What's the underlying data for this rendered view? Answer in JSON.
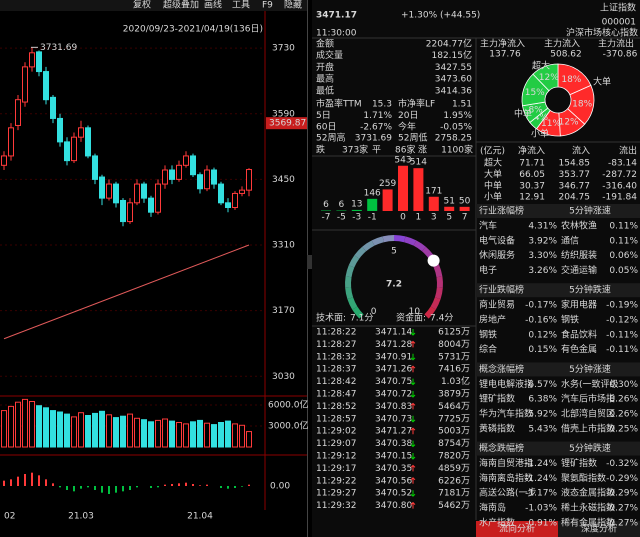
{
  "menu": [
    "复权",
    "超级叠加",
    "画线",
    "工具",
    "F9",
    "隐藏"
  ],
  "chart": {
    "type": "candlestick",
    "date_range": "2020/09/23-2021/04/19(136日)",
    "max_label": "3731.69",
    "crosshair": {
      "value": 3569.87,
      "label": "3569.87"
    },
    "ylim": [
      2990,
      3790
    ],
    "yticks": [
      3030,
      3170,
      3310,
      3450,
      3590,
      3730
    ],
    "dates": [
      "02",
      null,
      null,
      null,
      null,
      null,
      null,
      null,
      null,
      null,
      null,
      "21.03",
      null,
      null,
      null,
      null,
      null,
      null,
      null,
      null,
      null,
      null,
      null,
      null,
      null,
      null,
      null,
      null,
      "21.04",
      null,
      null,
      null,
      null,
      null,
      null,
      null
    ],
    "open": [
      3480,
      3500,
      3565,
      3615,
      3690,
      3722,
      3680,
      3625,
      3580,
      3530,
      3490,
      3540,
      3560,
      3500,
      3455,
      3410,
      3440,
      3405,
      3360,
      3400,
      3440,
      3410,
      3380,
      3440,
      3470,
      3450,
      3480,
      3500,
      3460,
      3430,
      3470,
      3440,
      3400,
      3390,
      3420,
      3427
    ],
    "high": [
      3510,
      3570,
      3630,
      3700,
      3731.69,
      3725,
      3690,
      3630,
      3590,
      3540,
      3550,
      3575,
      3565,
      3505,
      3460,
      3450,
      3445,
      3410,
      3410,
      3450,
      3445,
      3415,
      3450,
      3480,
      3480,
      3490,
      3510,
      3505,
      3465,
      3480,
      3475,
      3445,
      3410,
      3425,
      3435,
      3474
    ],
    "low": [
      3470,
      3490,
      3555,
      3605,
      3680,
      3670,
      3610,
      3570,
      3520,
      3480,
      3485,
      3530,
      3495,
      3440,
      3395,
      3405,
      3390,
      3350,
      3355,
      3395,
      3400,
      3370,
      3375,
      3430,
      3440,
      3445,
      3475,
      3455,
      3420,
      3425,
      3430,
      3395,
      3380,
      3385,
      3414,
      3414
    ],
    "close": [
      3500,
      3560,
      3620,
      3690,
      3720,
      3680,
      3620,
      3580,
      3530,
      3490,
      3540,
      3560,
      3500,
      3450,
      3410,
      3440,
      3400,
      3360,
      3400,
      3440,
      3410,
      3380,
      3440,
      3470,
      3450,
      3480,
      3500,
      3460,
      3430,
      3470,
      3440,
      3400,
      3390,
      3420,
      3427,
      3471
    ],
    "trend": {
      "x": [
        0,
        35
      ],
      "values": [
        3110,
        3310
      ],
      "color": "#e05a5a"
    },
    "up_color": "#ff3a3a",
    "down_color": "#33e0e0",
    "volume": {
      "ylim": [
        0,
        7000
      ],
      "yticks": [
        {
          "value": 3000,
          "label": "3000.0亿"
        },
        {
          "value": 6000,
          "label": "6000.0亿"
        }
      ],
      "values": [
        5200,
        5800,
        6400,
        6800,
        6500,
        5900,
        5600,
        5200,
        5000,
        4700,
        4300,
        4900,
        4500,
        4800,
        5100,
        4600,
        4200,
        4400,
        4700,
        4100,
        3900,
        3600,
        3800,
        4000,
        3700,
        3500,
        3300,
        3600,
        3800,
        3400,
        3200,
        3500,
        3700,
        3300,
        3100,
        2205
      ]
    },
    "macd": {
      "ylim": [
        -30,
        30
      ],
      "yticks": [
        {
          "value": 0,
          "label": "0.00"
        }
      ],
      "values": [
        8,
        10,
        14,
        18,
        20,
        16,
        10,
        4,
        -2,
        -6,
        -8,
        -4,
        -2,
        -6,
        -10,
        -12,
        -10,
        -8,
        -6,
        -2,
        0,
        -3,
        -2,
        2,
        3,
        4,
        5,
        3,
        1,
        2,
        0,
        -3,
        -4,
        -3,
        -1,
        2
      ]
    }
  },
  "quote": {
    "price": "3471.17",
    "change": "+1.30% (+44.55)",
    "name": "上证指数",
    "code": "000001",
    "time": "11:30:00",
    "market": "沪深市场核心指数"
  },
  "stats": [
    {
      "label": "金额",
      "value": "2204.77亿",
      "color": "#e8e8e8"
    },
    {
      "label": "成交量",
      "value": "182.15亿",
      "color": "#e8e8e8"
    },
    {
      "label": "开盘",
      "value": "3427.55",
      "color": "#ff3a3a"
    },
    {
      "label": "最高",
      "value": "3473.60",
      "color": "#ff3a3a"
    },
    {
      "label": "最低",
      "value": "3414.36",
      "color": "#00d000"
    }
  ],
  "stats2": [
    {
      "cells": [
        "市盈率TTM",
        "15.3",
        "市净率LF",
        "1.51"
      ],
      "colors": [
        "#e8e8e8",
        "#e8e8e8"
      ]
    },
    {
      "cells": [
        "5日",
        "1.71%",
        "20日",
        "1.95%"
      ],
      "colors": [
        "#ff3a3a",
        "#ff3a3a"
      ]
    },
    {
      "cells": [
        "60日",
        "-2.67%",
        "今年",
        "-0.05%"
      ],
      "colors": [
        "#00d000",
        "#00d000"
      ]
    },
    {
      "cells": [
        "52周高",
        "3731.69",
        "52周低",
        "2758.25"
      ],
      "colors": [
        "#e8e8e8",
        "#e8e8e8"
      ]
    }
  ],
  "breadth": [
    "跌",
    "373家",
    "平",
    "86家",
    "涨",
    "1100家"
  ],
  "flow": {
    "headers": [
      "主力净流入",
      "主力流入",
      "主力流出"
    ],
    "values": [
      "137.76",
      "508.62",
      "-370.86"
    ],
    "donut": {
      "values": [
        18,
        18,
        12,
        11,
        4,
        8,
        15,
        12
      ],
      "value_labels": [
        "18%",
        "18%",
        "12%",
        "11%",
        "4%",
        "8%",
        "15%",
        "12%"
      ],
      "colors": [
        "#ff2a2a",
        "#ff2a2a",
        "#ff2a2a",
        "#ff2a2a",
        "#22cc44",
        "#22cc44",
        "#22cc44",
        "#22cc44"
      ]
    },
    "donut_labels": [
      "超大",
      "大单",
      "中单",
      "小单"
    ],
    "table": {
      "header": [
        "(亿元)",
        "净流入",
        "流入",
        "流出"
      ],
      "rows": [
        [
          "超大",
          "71.71",
          "154.85",
          "-83.14"
        ],
        [
          "大单",
          "66.05",
          "353.77",
          "-287.72"
        ],
        [
          "中单",
          "30.37",
          "346.77",
          "-316.40"
        ],
        [
          "小单",
          "12.91",
          "204.75",
          "-191.84"
        ]
      ]
    }
  },
  "distribution": {
    "type": "bar",
    "categories": [
      "-7",
      "-5",
      "-3",
      "-1",
      null,
      "0",
      "1",
      "3",
      "5",
      "7"
    ],
    "values": [
      6,
      6,
      13,
      146,
      259,
      543,
      514,
      171,
      51,
      50
    ],
    "colors": [
      "#00c040",
      "#00c040",
      "#00c040",
      "#00c040",
      "#ff2a2a",
      "#ff2a2a",
      "#ff2a2a",
      "#ff2a2a",
      "#ff2a2a",
      "#ff2a2a"
    ],
    "ylim": [
      0,
      600
    ]
  },
  "gauge": {
    "value": 7.2,
    "min": 0,
    "max": 10,
    "ticks": [
      0,
      5,
      10
    ],
    "scores": [
      [
        "技术面:",
        "7.1分"
      ],
      [
        "资金面:",
        "7.4分"
      ]
    ]
  },
  "ticks": {
    "rows": [
      [
        "11:28:22",
        "3471.14",
        "6125万"
      ],
      [
        "11:28:27",
        "3471.28",
        "8004万"
      ],
      [
        "11:28:32",
        "3470.91",
        "5731万"
      ],
      [
        "11:28:37",
        "3471.26",
        "7416万"
      ],
      [
        "11:28:42",
        "3470.75",
        "1.03亿"
      ],
      [
        "11:28:47",
        "3470.72",
        "3879万"
      ],
      [
        "11:28:52",
        "3470.83",
        "5464万"
      ],
      [
        "11:28:57",
        "3470.73",
        "7725万"
      ],
      [
        "11:29:02",
        "3471.27",
        "5003万"
      ],
      [
        "11:29:07",
        "3470.38",
        "8754万"
      ],
      [
        "11:29:12",
        "3470.15",
        "7820万"
      ],
      [
        "11:29:17",
        "3470.35",
        "4859万"
      ],
      [
        "11:29:22",
        "3470.56",
        "6226万"
      ],
      [
        "11:29:27",
        "3470.52",
        "7181万"
      ],
      [
        "11:29:32",
        "3470.80",
        "5462万"
      ]
    ],
    "arrow_colors": [
      "#00d000",
      "#ff3a3a",
      "#00d000",
      "#ff3a3a",
      "#00d000",
      "#00d000",
      "#ff3a3a",
      "#00d000",
      "#ff3a3a",
      "#00d000",
      "#00d000",
      "#ff3a3a",
      "#ff3a3a",
      "#00d000",
      "#ff3a3a"
    ]
  },
  "sectors": [
    {
      "header": [
        "行业涨幅榜",
        "5分钟涨速"
      ],
      "rows": [
        [
          "汽车",
          "4.31%",
          "农林牧渔",
          "0.11%"
        ],
        [
          "电气设备",
          "3.92%",
          "通信",
          "0.11%"
        ],
        [
          "休闲服务",
          "3.30%",
          "纺织服装",
          "0.06%"
        ],
        [
          "电子",
          "3.26%",
          "交通运输",
          "0.05%"
        ]
      ]
    },
    {
      "header": [
        "行业跌幅榜",
        "5分钟跌速"
      ],
      "rows": [
        [
          "商业贸易",
          "-0.17%",
          "家用电器",
          "-0.19%"
        ],
        [
          "房地产",
          "-0.16%",
          "钢铁",
          "-0.12%"
        ],
        [
          "钢铁",
          "0.12%",
          "食品饮料",
          "-0.11%"
        ],
        [
          "综合",
          "0.15%",
          "有色金属",
          "-0.11%"
        ]
      ]
    },
    {
      "header": [
        "概念涨幅榜",
        "5分钟涨速"
      ],
      "rows": [
        [
          "锂电电解液指",
          "6.57%",
          "水务(一致评级",
          "0.30%"
        ],
        [
          "锂矿指数",
          "6.38%",
          "汽车后市场指",
          "0.26%"
        ],
        [
          "华为汽车指数",
          "5.92%",
          "北部湾自贸区",
          "0.26%"
        ],
        [
          "黄磷指数",
          "5.43%",
          "借壳上市指数",
          "0.25%"
        ]
      ]
    },
    {
      "header": [
        "概念跌幅榜",
        "5分钟跌速"
      ],
      "rows": [
        [
          "海南自贸港指",
          "-1.24%",
          "锂矿指数",
          "-0.32%"
        ],
        [
          "海南离岛指数",
          "-1.24%",
          "聚氨酯指数",
          "-0.29%"
        ],
        [
          "高送公路(一步",
          "-1.17%",
          "液态金属指数",
          "-0.29%"
        ],
        [
          "海南岛",
          "-1.03%",
          "稀土永磁指数",
          "-0.27%"
        ],
        [
          "水产指数",
          "-0.91%",
          "稀有金属指数",
          "-0.27%"
        ]
      ]
    }
  ],
  "tabs": [
    "流向分析",
    "深度分析"
  ]
}
